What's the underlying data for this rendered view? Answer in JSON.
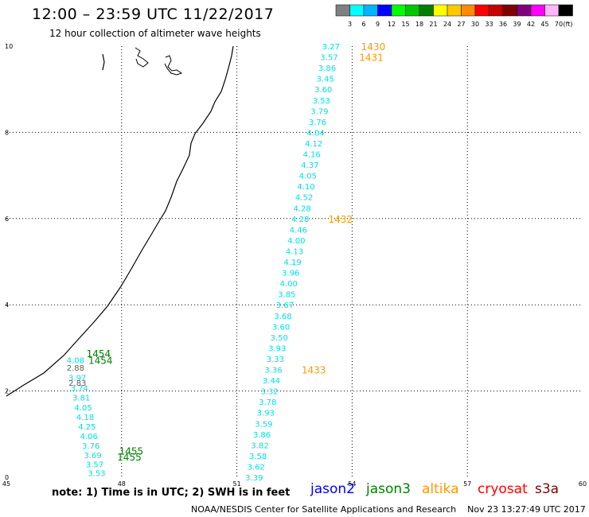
{
  "title": "12:00 – 23:59 UTC 11/22/2017",
  "subtitle": "12 hour collection of altimeter wave heights",
  "legend": {
    "unit": "(ft)",
    "ticks": [
      "3",
      "6",
      "9",
      "12",
      "15",
      "18",
      "21",
      "24",
      "27",
      "30",
      "33",
      "36",
      "39",
      "42",
      "45",
      "70"
    ],
    "colors": [
      "#808080",
      "#00ffff",
      "#00b4ff",
      "#0000ff",
      "#00ff00",
      "#00c800",
      "#008000",
      "#ffff00",
      "#ffc800",
      "#ff8c00",
      "#ff0000",
      "#c80000",
      "#800000",
      "#800080",
      "#ff00ff",
      "#ffb4ff",
      "#000000"
    ]
  },
  "axes": {
    "x_ticks": [
      "45",
      "48",
      "51",
      "54",
      "57",
      "60"
    ],
    "y_ticks": [
      "0",
      "2",
      "4",
      "6",
      "8",
      "10"
    ]
  },
  "tracks": [
    {
      "satellite": "jason2",
      "color": "#00e0e0",
      "points": [
        {
          "lon": 53.45,
          "lat": 10.0,
          "v": "3.27"
        },
        {
          "lon": 53.4,
          "lat": 9.75,
          "v": "3.57"
        },
        {
          "lon": 53.35,
          "lat": 9.5,
          "v": "3.86"
        },
        {
          "lon": 53.3,
          "lat": 9.25,
          "v": "3.45"
        },
        {
          "lon": 53.25,
          "lat": 9.0,
          "v": "3.60"
        },
        {
          "lon": 53.2,
          "lat": 8.75,
          "v": "3.53"
        },
        {
          "lon": 53.15,
          "lat": 8.5,
          "v": "3.79"
        },
        {
          "lon": 53.1,
          "lat": 8.25,
          "v": "3.76"
        },
        {
          "lon": 53.05,
          "lat": 8.0,
          "v": "4.04"
        },
        {
          "lon": 53.0,
          "lat": 7.75,
          "v": "4.12"
        },
        {
          "lon": 52.95,
          "lat": 7.5,
          "v": "4.16"
        },
        {
          "lon": 52.9,
          "lat": 7.25,
          "v": "4.37"
        },
        {
          "lon": 52.85,
          "lat": 7.0,
          "v": "4.05"
        },
        {
          "lon": 52.8,
          "lat": 6.75,
          "v": "4.10"
        },
        {
          "lon": 52.75,
          "lat": 6.5,
          "v": "4.52"
        },
        {
          "lon": 52.7,
          "lat": 6.25,
          "v": "4.28"
        },
        {
          "lon": 52.65,
          "lat": 6.0,
          "v": "4.28"
        },
        {
          "lon": 52.6,
          "lat": 5.75,
          "v": "4.46"
        },
        {
          "lon": 52.55,
          "lat": 5.5,
          "v": "4.00"
        },
        {
          "lon": 52.5,
          "lat": 5.25,
          "v": "4.13"
        },
        {
          "lon": 52.45,
          "lat": 5.0,
          "v": "4.19"
        },
        {
          "lon": 52.4,
          "lat": 4.75,
          "v": "3.96"
        },
        {
          "lon": 52.35,
          "lat": 4.5,
          "v": "4.00"
        },
        {
          "lon": 52.3,
          "lat": 4.25,
          "v": "3.85"
        },
        {
          "lon": 52.25,
          "lat": 4.0,
          "v": "3.67"
        },
        {
          "lon": 52.2,
          "lat": 3.75,
          "v": "3.68"
        },
        {
          "lon": 52.15,
          "lat": 3.5,
          "v": "3.60"
        },
        {
          "lon": 52.1,
          "lat": 3.25,
          "v": "3.50"
        },
        {
          "lon": 52.05,
          "lat": 3.0,
          "v": "3.93"
        },
        {
          "lon": 52.0,
          "lat": 2.75,
          "v": "3.33"
        },
        {
          "lon": 51.95,
          "lat": 2.5,
          "v": "3.36"
        },
        {
          "lon": 51.9,
          "lat": 2.25,
          "v": "3.44"
        },
        {
          "lon": 51.85,
          "lat": 2.0,
          "v": "3.32"
        },
        {
          "lon": 51.8,
          "lat": 1.75,
          "v": "3.78"
        },
        {
          "lon": 51.75,
          "lat": 1.5,
          "v": "3.93"
        },
        {
          "lon": 51.7,
          "lat": 1.25,
          "v": "3.59"
        },
        {
          "lon": 51.65,
          "lat": 1.0,
          "v": "3.86"
        },
        {
          "lon": 51.6,
          "lat": 0.75,
          "v": "3.82"
        },
        {
          "lon": 51.55,
          "lat": 0.5,
          "v": "3.58"
        },
        {
          "lon": 51.5,
          "lat": 0.25,
          "v": "3.62"
        },
        {
          "lon": 51.45,
          "lat": 0.0,
          "v": "3.39"
        }
      ]
    },
    {
      "satellite": "jason2",
      "color": "#00e0e0",
      "points": [
        {
          "lon": 46.8,
          "lat": 2.72,
          "v": "4.08"
        },
        {
          "lon": 46.85,
          "lat": 2.32,
          "v": "3.97"
        },
        {
          "lon": 46.9,
          "lat": 2.08,
          "v": "3.74"
        },
        {
          "lon": 46.95,
          "lat": 1.85,
          "v": "3.81"
        },
        {
          "lon": 47.0,
          "lat": 1.62,
          "v": "4.05"
        },
        {
          "lon": 47.05,
          "lat": 1.4,
          "v": "4.18"
        },
        {
          "lon": 47.1,
          "lat": 1.18,
          "v": "4.25"
        },
        {
          "lon": 47.15,
          "lat": 0.96,
          "v": "4.06"
        },
        {
          "lon": 47.2,
          "lat": 0.74,
          "v": "3.76"
        },
        {
          "lon": 47.25,
          "lat": 0.52,
          "v": "3.69"
        },
        {
          "lon": 47.3,
          "lat": 0.3,
          "v": "3.57"
        },
        {
          "lon": 47.35,
          "lat": 0.1,
          "v": "3.53"
        }
      ]
    },
    {
      "satellite": "jason2-gray",
      "color": "#606060",
      "points": [
        {
          "lon": 46.8,
          "lat": 2.55,
          "v": "2.88"
        },
        {
          "lon": 46.85,
          "lat": 2.2,
          "v": "2.83"
        }
      ]
    }
  ],
  "time_labels": [
    {
      "lon": 54.55,
      "lat": 10.0,
      "text": "1430",
      "color": "#ff9900"
    },
    {
      "lon": 54.5,
      "lat": 9.75,
      "text": "1431",
      "color": "#ff9900"
    },
    {
      "lon": 53.7,
      "lat": 6.0,
      "text": "1432",
      "color": "#ff9900"
    },
    {
      "lon": 53.0,
      "lat": 2.5,
      "text": "1433",
      "color": "#ff9900"
    },
    {
      "lon": 47.4,
      "lat": 2.88,
      "text": "1454",
      "color": "#008000"
    },
    {
      "lon": 47.45,
      "lat": 2.72,
      "text": "1454",
      "color": "#008000"
    },
    {
      "lon": 48.25,
      "lat": 0.62,
      "text": "1455",
      "color": "#008000"
    },
    {
      "lon": 48.2,
      "lat": 0.48,
      "text": "1455",
      "color": "#008000"
    }
  ],
  "note": "note: 1) Time is in UTC; 2) SWH is in feet",
  "satellites": [
    {
      "name": "jason2",
      "color": "#0000ff"
    },
    {
      "name": "jason3",
      "color": "#008000"
    },
    {
      "name": "altika",
      "color": "#ff9900"
    },
    {
      "name": "cryosat",
      "color": "#ff0000"
    },
    {
      "name": "s3a",
      "color": "#800000"
    }
  ],
  "credit": "NOAA/NESDIS Center for Satellite Applications and Research",
  "timestamp": "Nov 23 13:27:49 UTC 2017"
}
